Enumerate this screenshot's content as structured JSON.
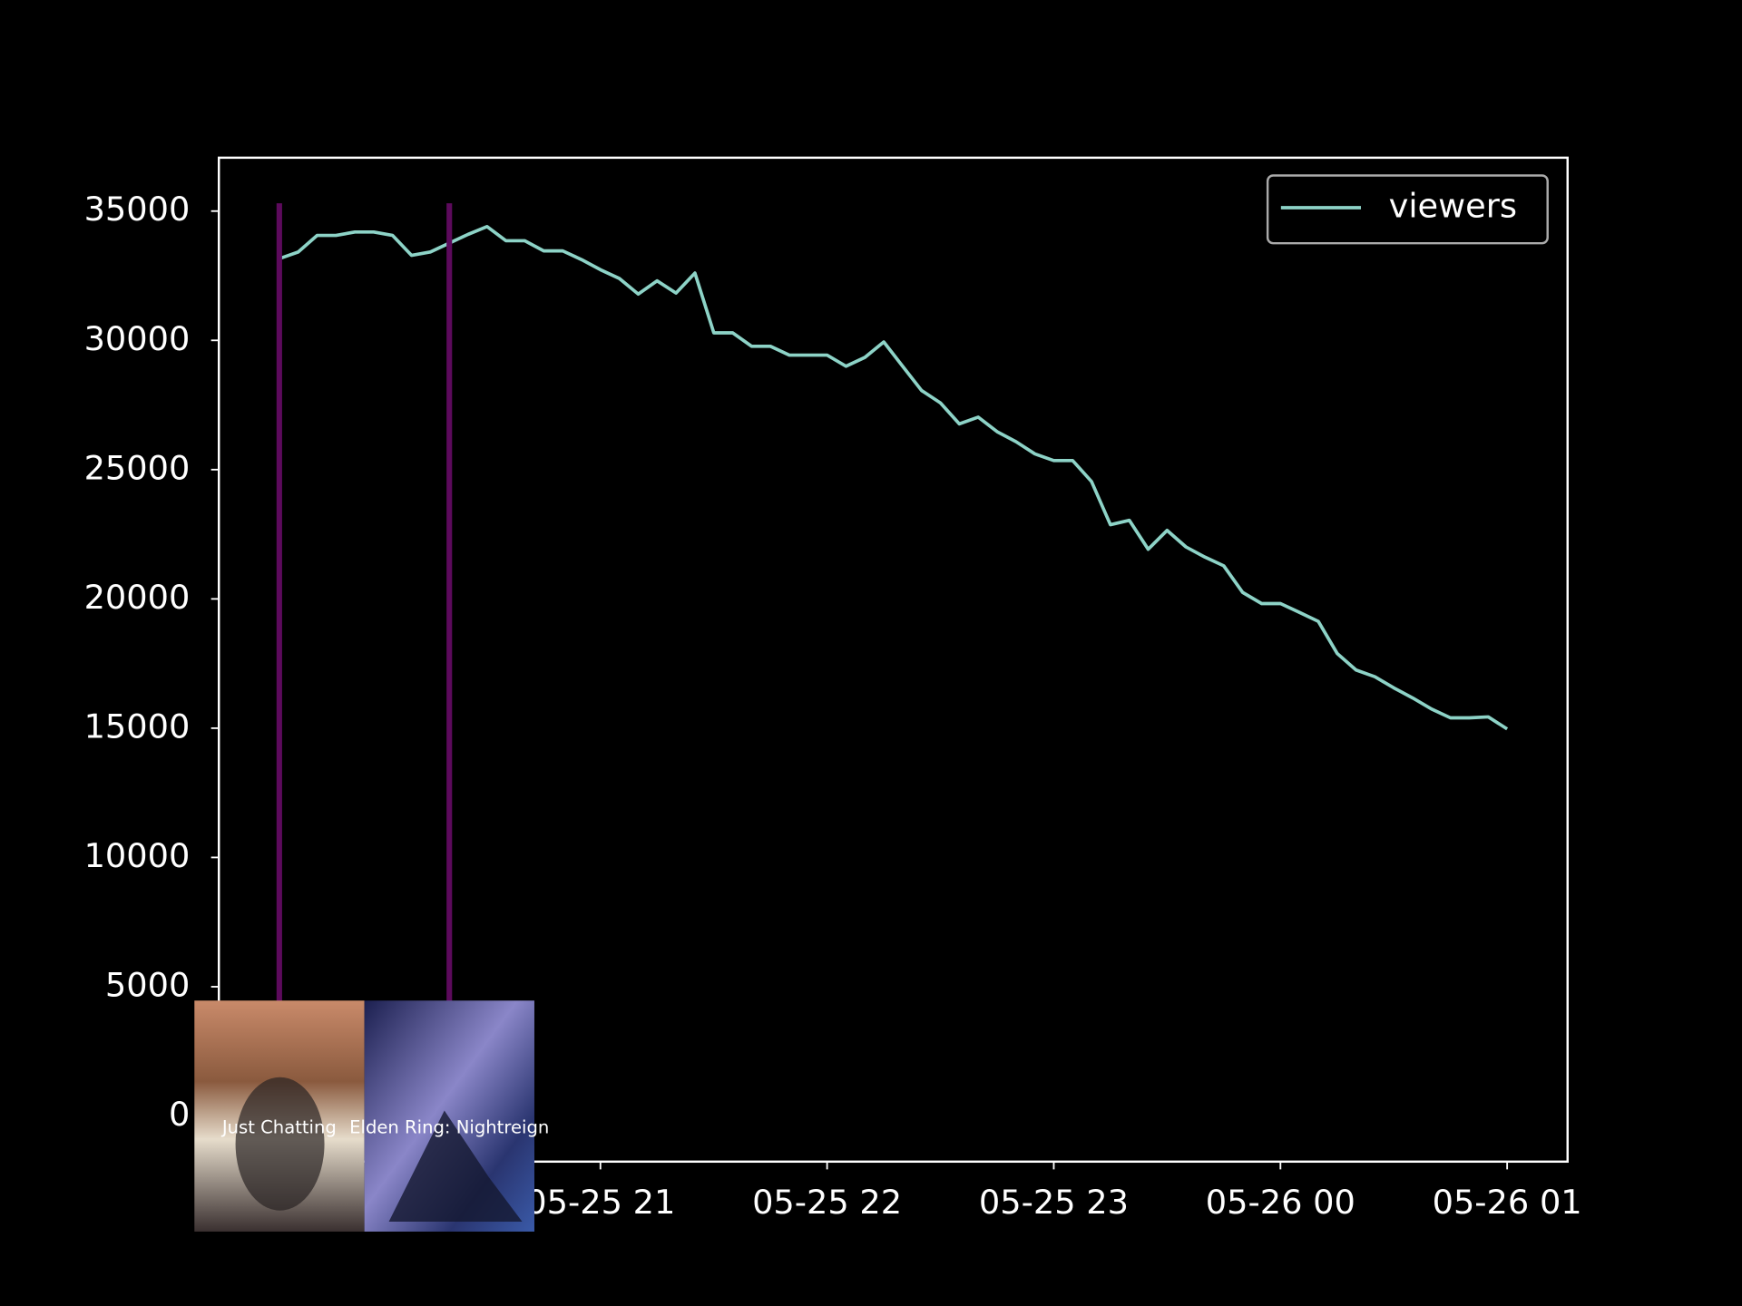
{
  "chart_data": {
    "type": "line",
    "x": [
      "05-25 19:35",
      "05-25 19:40",
      "05-25 19:45",
      "05-25 19:50",
      "05-25 19:55",
      "05-25 20:00",
      "05-25 20:05",
      "05-25 20:10",
      "05-25 20:15",
      "05-25 20:20",
      "05-25 20:25",
      "05-25 20:30",
      "05-25 20:35",
      "05-25 20:40",
      "05-25 20:45",
      "05-25 20:50",
      "05-25 20:55",
      "05-25 21:00",
      "05-25 21:05",
      "05-25 21:10",
      "05-25 21:15",
      "05-25 21:20",
      "05-25 21:25",
      "05-25 21:30",
      "05-25 21:35",
      "05-25 21:40",
      "05-25 21:45",
      "05-25 21:50",
      "05-25 21:55",
      "05-25 22:00",
      "05-25 22:05",
      "05-25 22:10",
      "05-25 22:15",
      "05-25 22:20",
      "05-25 22:25",
      "05-25 22:30",
      "05-25 22:35",
      "05-25 22:40",
      "05-25 22:45",
      "05-25 22:50",
      "05-25 22:55",
      "05-25 23:00",
      "05-25 23:05",
      "05-25 23:10",
      "05-25 23:15",
      "05-25 23:20",
      "05-25 23:25",
      "05-25 23:30",
      "05-25 23:35",
      "05-25 23:40",
      "05-25 23:45",
      "05-25 23:50",
      "05-25 23:55",
      "05-26 00:00",
      "05-26 00:05",
      "05-26 00:10",
      "05-26 00:15",
      "05-26 00:20",
      "05-26 00:25",
      "05-26 00:30",
      "05-26 00:35",
      "05-26 00:40",
      "05-26 00:45",
      "05-26 00:50",
      "05-26 00:55",
      "05-26 01:00"
    ],
    "series": [
      {
        "name": "viewers",
        "color": "#8dd3c7",
        "values": [
          33160,
          33420,
          34060,
          34060,
          34190,
          34190,
          34060,
          33290,
          33420,
          33760,
          34100,
          34400,
          33850,
          33850,
          33460,
          33460,
          33120,
          32730,
          32390,
          31790,
          32300,
          31830,
          32600,
          30290,
          30290,
          29770,
          29770,
          29430,
          29430,
          29430,
          29000,
          29340,
          29940,
          29000,
          28060,
          27580,
          26770,
          27030,
          26470,
          26080,
          25610,
          25350,
          25350,
          24540,
          22870,
          23040,
          21920,
          22650,
          22010,
          21620,
          21280,
          20250,
          19820,
          19820,
          19480,
          19130,
          17890,
          17250,
          16990,
          16560,
          16170,
          15740,
          15400,
          15400,
          15440,
          14970
        ]
      }
    ],
    "xlim": [
      "05-25 19:19",
      "05-26 01:16"
    ],
    "xticks": [
      "05-25 21",
      "05-25 22",
      "05-25 23",
      "05-26 00",
      "05-26 01"
    ],
    "ylim": [
      -1765,
      37065
    ],
    "yticks": [
      0,
      5000,
      10000,
      15000,
      20000,
      25000,
      30000,
      35000
    ],
    "markers": [
      {
        "x": "05-25 19:35",
        "label": "Just Chatting",
        "color": "#5c0a5c"
      },
      {
        "x": "05-25 20:20",
        "label": "Elden Ring: Nightreign",
        "color": "#5c0a5c"
      }
    ],
    "legend": "upper right"
  }
}
